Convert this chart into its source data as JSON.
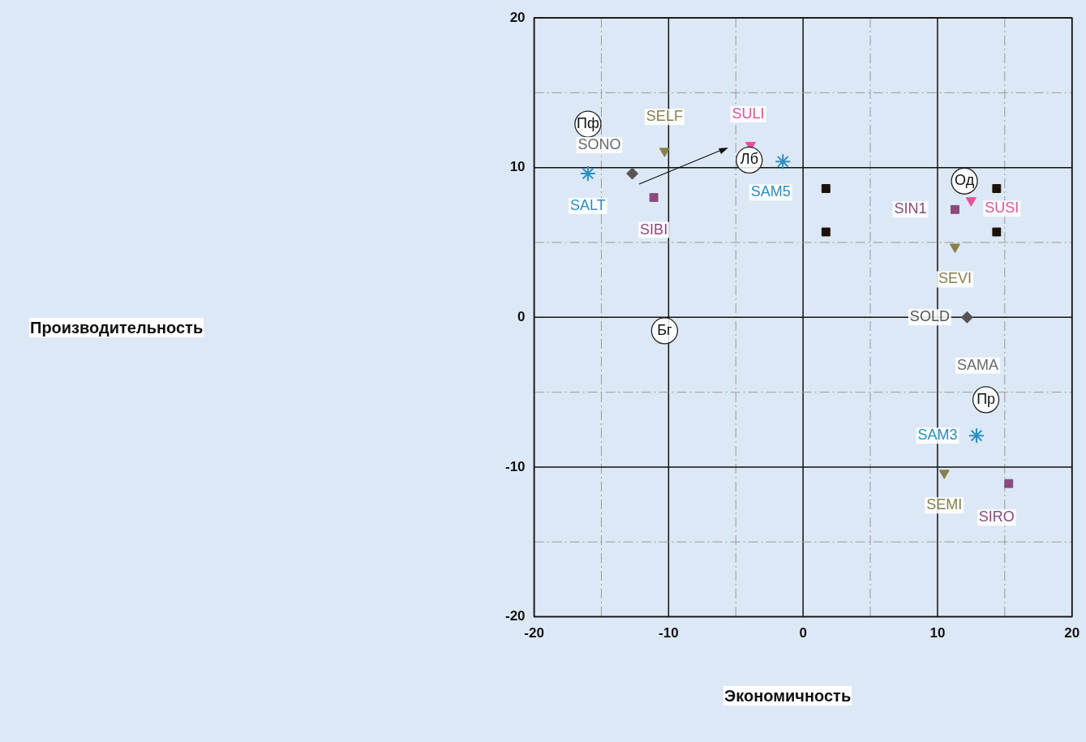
{
  "chart_data": {
    "type": "scatter",
    "xlabel": "Экономичность",
    "annotations": [
      "Производительность",
      {
        "text": "SONO",
        "x": -16,
        "y": 12.9
      },
      {
        "text": "SAMA",
        "x": 13.6,
        "y": -5.5
      }
    ],
    "xlim": [
      -20,
      20
    ],
    "ylim": [
      -20,
      20
    ],
    "xticks": [
      -20,
      {
        "value": -15,
        "label": null
      },
      -10,
      {
        "value": -5,
        "label": null
      },
      0,
      {
        "value": 5,
        "label": null
      },
      10,
      {
        "value": 15,
        "label": null
      },
      20
    ],
    "yticks": [
      -20,
      {
        "value": -15,
        "label": null
      },
      -10,
      {
        "value": -5,
        "label": null
      },
      0,
      {
        "value": 5,
        "label": null
      },
      10,
      {
        "value": 15,
        "label": null
      },
      20
    ],
    "grid": true,
    "legend": false,
    "series": [
      {
        "color": "#222222",
        "marker": "circle",
        "x": [
          -16,
          -4.0,
          12.0,
          13.6,
          -10.3
        ],
        "values": [
          12.9,
          10.5,
          9.1,
          -5.5,
          -0.9
        ],
        "value_labels": [
          "Пф",
          "Лб",
          "Од",
          "Пр",
          "Бг"
        ]
      },
      {
        "color": "#2a8fc0",
        "marker": "cross",
        "x": [
          -16,
          -1.5,
          12.9
        ],
        "values": [
          9.6,
          10.4,
          -7.9
        ],
        "value_labels": [
          "SALT",
          "SAM5",
          "SAM3"
        ]
      },
      {
        "color": "#8a7f48",
        "marker": "triangle",
        "x": [
          -10.3,
          11.3,
          10.5
        ],
        "values": [
          11.1,
          4.7,
          -10.4
        ],
        "value_labels": [
          "SELF",
          "SEVI",
          "SEMI"
        ]
      },
      {
        "color": "#e0559a",
        "marker": "triangle",
        "x": [
          -3.9,
          12.5
        ],
        "values": [
          11.5,
          7.8
        ],
        "value_labels": [
          "SULI",
          "SUSI"
        ]
      },
      {
        "color": "#8b4a7e",
        "marker": "square",
        "x": [
          -11.1,
          11.3,
          15.3
        ],
        "values": [
          8.0,
          7.2,
          -11.1
        ],
        "value_labels": [
          "SIBI",
          "SIN1",
          "SIRO"
        ]
      },
      {
        "color": "#555555",
        "marker": "diamond",
        "x": [
          -12.7,
          12.2
        ],
        "values": [
          9.6,
          0
        ],
        "value_labels": [
          null,
          "SOLD"
        ]
      },
      {
        "color": "#1a1208",
        "marker": "square",
        "x": [
          1.7,
          1.7,
          14.4,
          14.4
        ],
        "values": [
          8.6,
          5.7,
          8.6,
          5.7
        ]
      }
    ]
  }
}
